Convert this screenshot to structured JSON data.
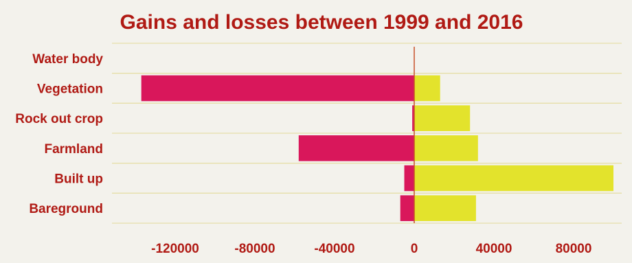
{
  "chart_data": {
    "type": "bar",
    "orientation": "horizontal",
    "title": "Gains and losses between 1999 and 2016",
    "categories": [
      "Water body",
      "Vegetation",
      "Rock out crop",
      "Farmland",
      "Built up",
      "Bareground"
    ],
    "series": [
      {
        "name": "",
        "values": [
          0,
          -137000,
          -1000,
          -58000,
          -5000,
          -7000
        ]
      },
      {
        "name": "",
        "values": [
          0,
          13000,
          28000,
          32000,
          100000,
          31000
        ]
      }
    ],
    "xlim": [
      -140000,
      100000
    ],
    "xticks": [
      -120000,
      -80000,
      -40000,
      0,
      40000,
      80000
    ],
    "xtick_labels": [
      "-120000",
      "-80000",
      "-40000",
      "0",
      "40000",
      "80000"
    ],
    "xlabel": "",
    "ylabel": "",
    "grid": true,
    "legend": "none",
    "colors": {
      "losses": "#d9175b",
      "gains": "#e3e32c",
      "text": "#b01a14",
      "grid": "#e6dfa8",
      "zero_line": "#c8502a"
    }
  }
}
